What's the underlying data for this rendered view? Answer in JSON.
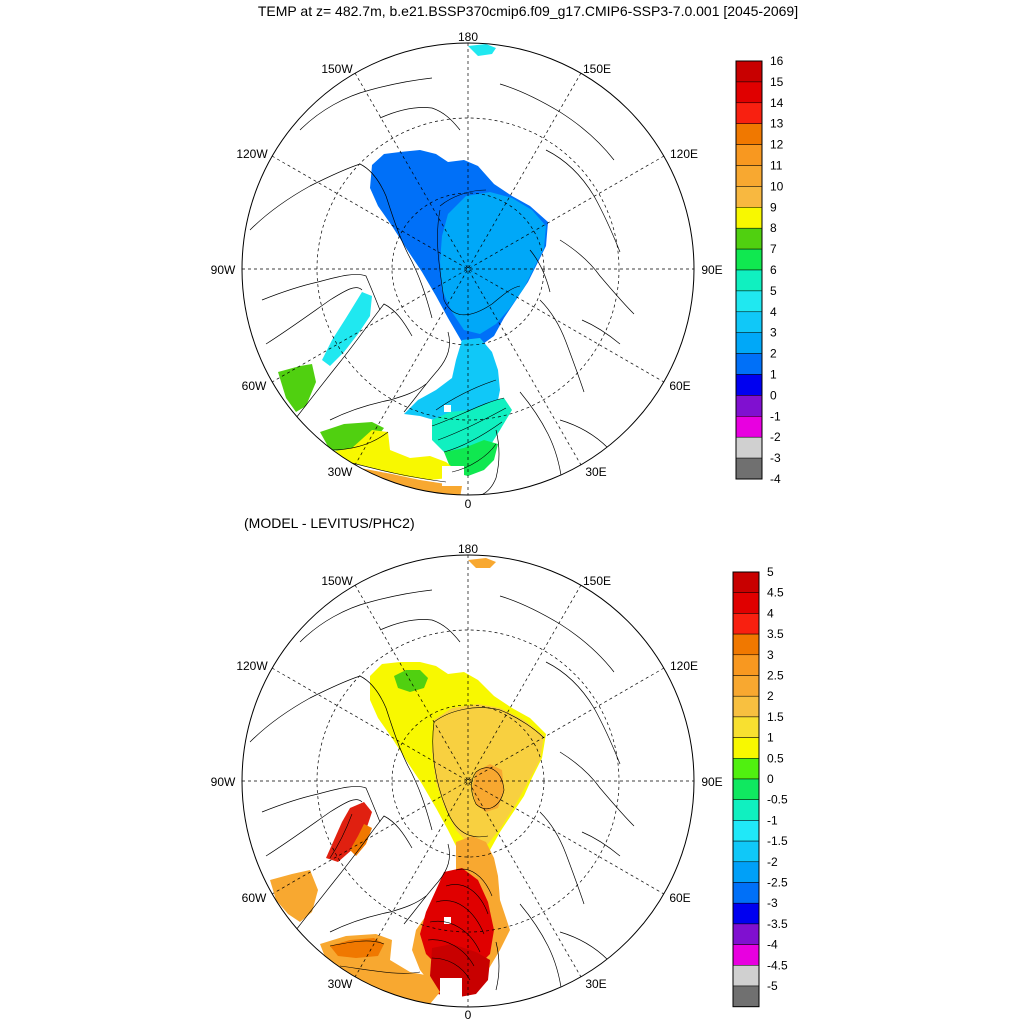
{
  "top": {
    "title": "TEMP at z= 482.7m, b.e21.BSSP370cmip6.f09_g17.CMIP6-SSP3-7.0.001 [2045-2069]",
    "lon_labels": {
      "n": "180",
      "nw150": "150W",
      "ne150": "150E",
      "w120": "120W",
      "e120": "120E",
      "w90": "90W",
      "e90": "90E",
      "w60": "60W",
      "e60": "60E",
      "w30": "30W",
      "e30": "30E",
      "s": "0"
    },
    "colorbar": {
      "labels": [
        "16",
        "15",
        "14",
        "13",
        "12",
        "11",
        "10",
        "9",
        "8",
        "7",
        "6",
        "5",
        "4",
        "3",
        "2",
        "1",
        "0",
        "-1",
        "-2",
        "-3",
        "-4"
      ],
      "colors": [
        "#c80000",
        "#e00000",
        "#f82010",
        "#f07800",
        "#f89820",
        "#f8a830",
        "#f8b840",
        "#f8f800",
        "#50d010",
        "#10e850",
        "#10f0c0",
        "#20e8f0",
        "#10c8f8",
        "#00a8f8",
        "#0070f8",
        "#0000f0",
        "#8010d0",
        "#e800e0",
        "#d0d0d0",
        "#707070"
      ]
    }
  },
  "bottom": {
    "title": "(MODEL - LEVITUS/PHC2)",
    "lon_labels": {
      "n": "180",
      "nw150": "150W",
      "ne150": "150E",
      "w120": "120W",
      "e120": "120E",
      "w90": "90W",
      "e90": "90E",
      "w60": "60W",
      "e60": "60E",
      "w30": "30W",
      "e30": "30E",
      "s": "0"
    },
    "colorbar": {
      "labels": [
        "5",
        "4.5",
        "4",
        "3.5",
        "3",
        "2.5",
        "2",
        "1.5",
        "1",
        "0.5",
        "0",
        "-0.5",
        "-1",
        "-1.5",
        "-2",
        "-2.5",
        "-3",
        "-3.5",
        "-4",
        "-4.5",
        "-5"
      ],
      "colors": [
        "#c80000",
        "#e00000",
        "#f82010",
        "#f07800",
        "#f89820",
        "#f8a830",
        "#f8c040",
        "#f8e030",
        "#f8f800",
        "#50f010",
        "#10e860",
        "#10f0c0",
        "#20e8f8",
        "#10c8f8",
        "#00a0f8",
        "#0070f8",
        "#0000f0",
        "#8010d0",
        "#e800e0",
        "#d0d0d0",
        "#707070"
      ]
    }
  }
}
